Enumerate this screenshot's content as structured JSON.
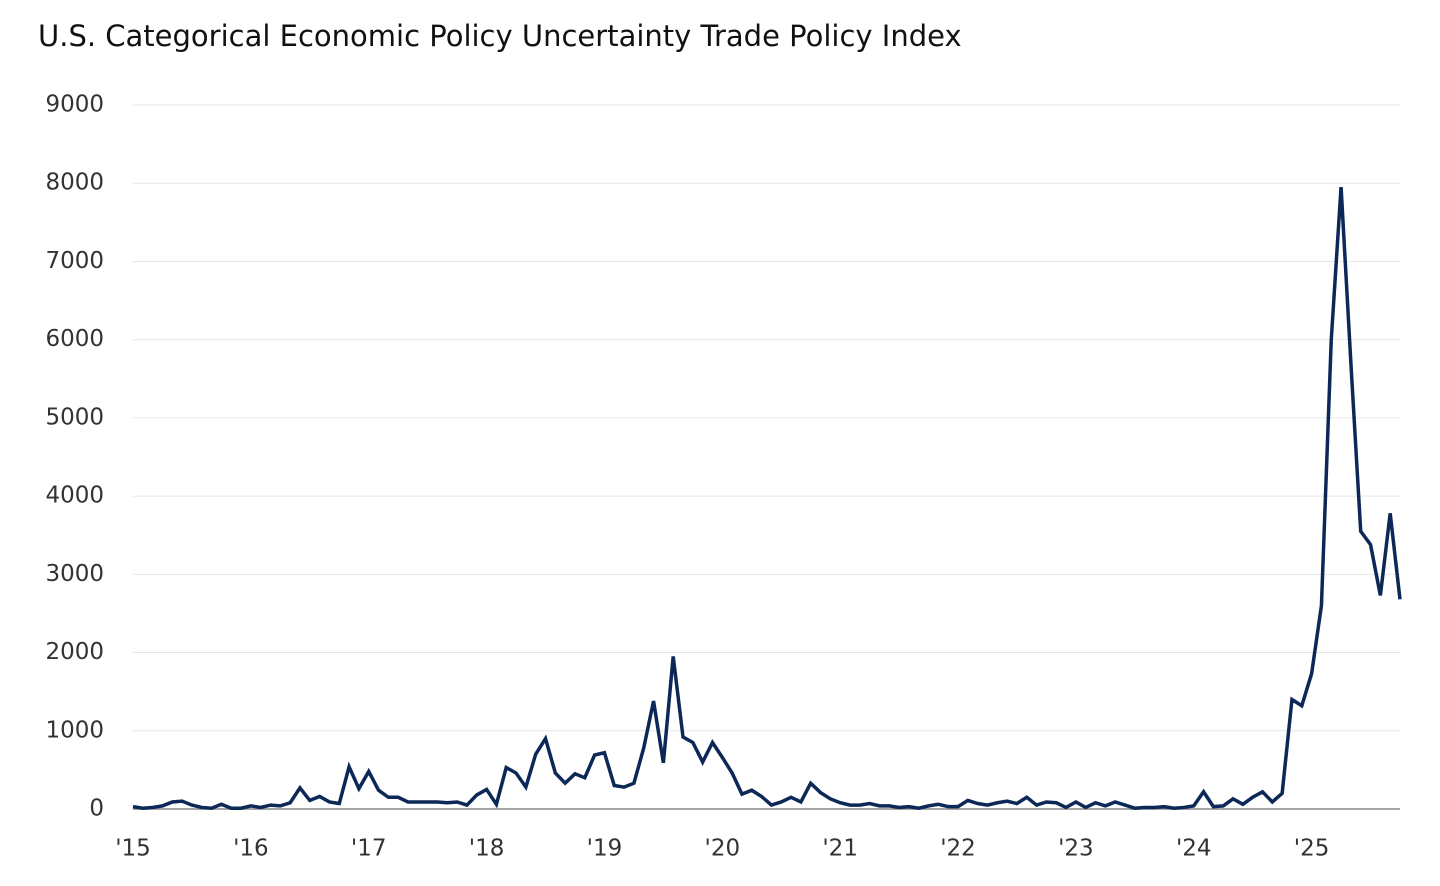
{
  "chart_data": {
    "type": "line",
    "title": "U.S. Categorical Economic Policy Uncertainty Trade Policy Index",
    "categories": [
      "'15",
      null,
      null,
      null,
      null,
      null,
      null,
      null,
      null,
      null,
      null,
      null,
      "'16",
      null,
      null,
      null,
      null,
      null,
      null,
      null,
      null,
      null,
      null,
      null,
      "'17",
      null,
      null,
      null,
      null,
      null,
      null,
      null,
      null,
      null,
      null,
      null,
      "'18",
      null,
      null,
      null,
      null,
      null,
      null,
      null,
      null,
      null,
      null,
      null,
      "'19",
      null,
      null,
      null,
      null,
      null,
      null,
      null,
      null,
      null,
      null,
      null,
      "'20",
      null,
      null,
      null,
      null,
      null,
      null,
      null,
      null,
      null,
      null,
      null,
      "'21",
      null,
      null,
      null,
      null,
      null,
      null,
      null,
      null,
      null,
      null,
      null,
      "'22",
      null,
      null,
      null,
      null,
      null,
      null,
      null,
      null,
      null,
      null,
      null,
      "'23",
      null,
      null,
      null,
      null,
      null,
      null,
      null,
      null,
      null,
      null,
      null,
      "'24",
      null,
      null,
      null,
      null,
      null,
      null,
      null,
      null,
      null,
      null,
      null,
      "'25",
      null,
      null,
      null,
      null,
      null,
      null,
      null,
      null,
      null
    ],
    "values": [
      30,
      10,
      20,
      40,
      90,
      100,
      50,
      20,
      10,
      60,
      10,
      10,
      40,
      20,
      50,
      40,
      80,
      270,
      110,
      160,
      90,
      70,
      540,
      260,
      480,
      240,
      150,
      150,
      90,
      90,
      90,
      90,
      80,
      90,
      50,
      180,
      250,
      60,
      530,
      460,
      280,
      700,
      900,
      460,
      330,
      450,
      400,
      690,
      720,
      300,
      280,
      330,
      780,
      1380,
      590,
      1950,
      920,
      850,
      600,
      850,
      660,
      460,
      190,
      240,
      160,
      50,
      90,
      150,
      90,
      330,
      210,
      130,
      80,
      50,
      50,
      70,
      40,
      40,
      20,
      30,
      10,
      40,
      60,
      30,
      30,
      110,
      70,
      50,
      80,
      100,
      70,
      150,
      50,
      90,
      80,
      20,
      90,
      20,
      80,
      40,
      90,
      50,
      10,
      20,
      20,
      30,
      10,
      20,
      40,
      220,
      30,
      40,
      130,
      60,
      150,
      220,
      90,
      200,
      1400,
      1320,
      1730,
      2600,
      6000,
      7950,
      5700,
      3550,
      3380,
      2730,
      3780,
      2680
    ],
    "color": "#0c2857",
    "ylim": [
      0,
      9000
    ],
    "yticks": [
      0,
      1000,
      2000,
      3000,
      4000,
      5000,
      6000,
      7000,
      8000,
      9000
    ],
    "grid": true
  }
}
